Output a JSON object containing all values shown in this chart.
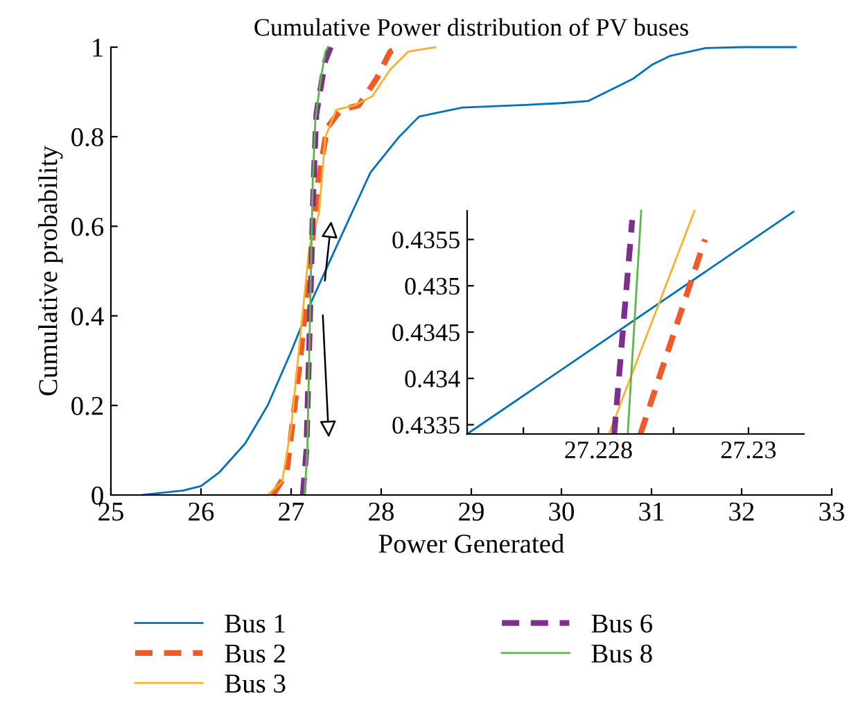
{
  "chart_data": [
    {
      "type": "line",
      "title": "Cumulative Power distribution of PV buses",
      "xlabel": "Power Generated",
      "ylabel": "Cumulative probability",
      "xlim": [
        25,
        33
      ],
      "ylim": [
        0,
        1
      ],
      "xticks": [
        25,
        26,
        27,
        28,
        29,
        30,
        31,
        32,
        33
      ],
      "yticks": [
        0,
        0.2,
        0.4,
        0.6,
        0.8,
        1
      ],
      "legend": "bottom",
      "grid": false,
      "series": [
        {
          "name": "Bus 1",
          "color": "#0072bd",
          "line_style": "solid",
          "x": [
            25.35,
            25.8,
            26.0,
            26.2,
            26.49,
            26.74,
            27.0,
            27.23,
            27.56,
            27.88,
            28.2,
            28.42,
            28.9,
            29.5,
            30.0,
            30.3,
            30.6,
            30.8,
            31.0,
            31.2,
            31.6,
            32.0,
            32.6
          ],
          "values": [
            0,
            0.01,
            0.02,
            0.05,
            0.115,
            0.2,
            0.32,
            0.434,
            0.58,
            0.72,
            0.8,
            0.845,
            0.865,
            0.87,
            0.875,
            0.88,
            0.91,
            0.93,
            0.96,
            0.98,
            0.998,
            1.0,
            1.0
          ]
        },
        {
          "name": "Bus 2",
          "color": "#f05a28",
          "line_style": "dashed",
          "x": [
            26.8,
            26.95,
            27.1,
            27.2,
            27.3,
            27.4,
            27.55,
            27.75,
            27.95,
            28.1,
            28.2
          ],
          "values": [
            0,
            0.05,
            0.3,
            0.5,
            0.7,
            0.82,
            0.86,
            0.87,
            0.93,
            0.99,
            1.0
          ]
        },
        {
          "name": "Bus 3",
          "color": "#fdb12b",
          "line_style": "solid",
          "x": [
            26.74,
            26.9,
            27.0,
            27.1,
            27.2,
            27.31,
            27.38,
            27.5,
            27.7,
            27.9,
            28.1,
            28.3,
            28.6
          ],
          "values": [
            0,
            0.03,
            0.15,
            0.35,
            0.55,
            0.63,
            0.8,
            0.86,
            0.87,
            0.89,
            0.95,
            0.99,
            1.0
          ]
        },
        {
          "name": "Bus 6",
          "color": "#7e2f8e",
          "line_style": "dashed",
          "x": [
            27.13,
            27.17,
            27.21,
            27.25,
            27.28,
            27.32,
            27.38,
            27.44
          ],
          "values": [
            0,
            0.1,
            0.4,
            0.7,
            0.85,
            0.9,
            0.97,
            1.0
          ]
        },
        {
          "name": "Bus 8",
          "color": "#5cb646",
          "line_style": "solid",
          "x": [
            27.15,
            27.18,
            27.21,
            27.24,
            27.27,
            27.29,
            27.33,
            27.38,
            27.41
          ],
          "values": [
            0,
            0.1,
            0.4,
            0.7,
            0.84,
            0.87,
            0.93,
            0.99,
            1.0
          ]
        }
      ]
    },
    {
      "type": "line",
      "xlim": [
        27.22625,
        27.23074
      ],
      "ylim": [
        0.4334,
        0.43581
      ],
      "xticks": [
        {
          "value": 27.227,
          "label": null
        },
        27.228,
        {
          "value": 27.229,
          "label": null
        },
        27.23
      ],
      "yticks": [
        0.4335,
        0.434,
        0.4345,
        0.435,
        0.4355
      ],
      "grid": false,
      "series": [
        {
          "color": "#0072bd",
          "line_style": "solid",
          "x": [
            27.22625,
            27.2306
          ],
          "values": [
            0.4334,
            0.4358
          ]
        },
        {
          "color": "#f05a28",
          "line_style": "dashed",
          "x": [
            27.22856,
            27.22942
          ],
          "values": [
            0.4334,
            0.4355
          ]
        },
        {
          "color": "#fdb12b",
          "line_style": "solid",
          "x": [
            27.22814,
            27.22928
          ],
          "values": [
            0.4334,
            0.43581
          ]
        },
        {
          "color": "#7e2f8e",
          "line_style": "dashed",
          "x": [
            27.22821,
            27.22845
          ],
          "values": [
            0.4334,
            0.43571
          ]
        },
        {
          "color": "#5cb646",
          "line_style": "solid",
          "x": [
            27.22839,
            27.22857
          ],
          "values": [
            0.4334,
            0.43581
          ]
        }
      ]
    }
  ]
}
